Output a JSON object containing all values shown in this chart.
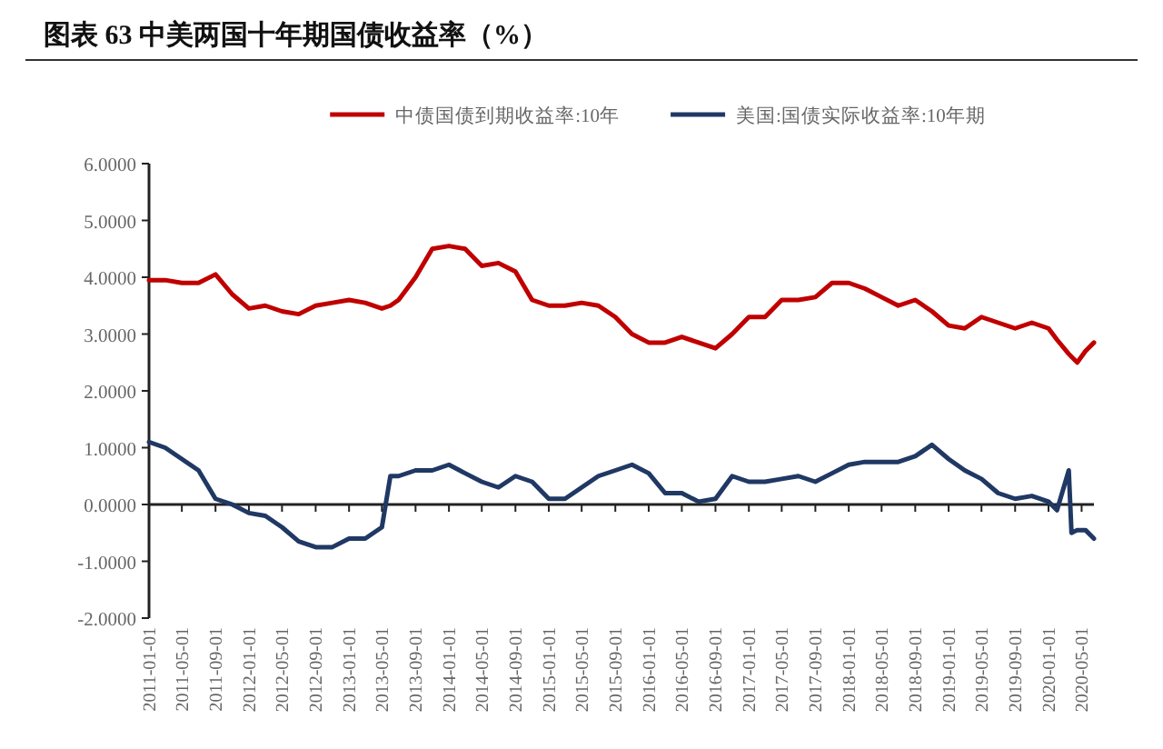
{
  "chart_data": {
    "type": "line",
    "title": "图表 63   中美两国十年期国债收益率（%）",
    "x": [
      "2011-01-01",
      "2011-03-01",
      "2011-05-01",
      "2011-07-01",
      "2011-09-01",
      "2011-11-01",
      "2012-01-01",
      "2012-03-01",
      "2012-05-01",
      "2012-07-01",
      "2012-09-01",
      "2012-11-01",
      "2013-01-01",
      "2013-03-01",
      "2013-05-01",
      "2013-06-01",
      "2013-07-01",
      "2013-09-01",
      "2013-11-01",
      "2014-01-01",
      "2014-03-01",
      "2014-05-01",
      "2014-07-01",
      "2014-09-01",
      "2014-11-01",
      "2015-01-01",
      "2015-03-01",
      "2015-05-01",
      "2015-07-01",
      "2015-09-01",
      "2015-11-01",
      "2016-01-01",
      "2016-03-01",
      "2016-05-01",
      "2016-07-01",
      "2016-09-01",
      "2016-11-01",
      "2017-01-01",
      "2017-03-01",
      "2017-05-01",
      "2017-07-01",
      "2017-09-01",
      "2017-11-01",
      "2018-01-01",
      "2018-03-01",
      "2018-05-01",
      "2018-07-01",
      "2018-09-01",
      "2018-11-01",
      "2019-01-01",
      "2019-03-01",
      "2019-05-01",
      "2019-07-01",
      "2019-09-01",
      "2019-11-01",
      "2020-01-01",
      "2020-02-01",
      "2020-03-15",
      "2020-03-25",
      "2020-04-15",
      "2020-05-15",
      "2020-06-15"
    ],
    "series": [
      {
        "name": "中债国债到期收益率:10年",
        "color": "#c00000",
        "values": [
          3.95,
          3.95,
          3.9,
          3.9,
          4.05,
          3.7,
          3.45,
          3.5,
          3.4,
          3.35,
          3.5,
          3.55,
          3.6,
          3.55,
          3.45,
          3.5,
          3.6,
          4.0,
          4.5,
          4.55,
          4.5,
          4.2,
          4.25,
          4.1,
          3.6,
          3.5,
          3.5,
          3.55,
          3.5,
          3.3,
          3.0,
          2.85,
          2.85,
          2.95,
          2.85,
          2.75,
          3.0,
          3.3,
          3.3,
          3.6,
          3.6,
          3.65,
          3.9,
          3.9,
          3.8,
          3.65,
          3.5,
          3.6,
          3.4,
          3.15,
          3.1,
          3.3,
          3.2,
          3.1,
          3.2,
          3.1,
          2.9,
          2.65,
          2.6,
          2.5,
          2.7,
          2.85
        ]
      },
      {
        "name": "美国:国债实际收益率:10年期",
        "color": "#203864",
        "values": [
          1.1,
          1.0,
          0.8,
          0.6,
          0.1,
          0.0,
          -0.15,
          -0.2,
          -0.4,
          -0.65,
          -0.75,
          -0.75,
          -0.6,
          -0.6,
          -0.4,
          0.5,
          0.5,
          0.6,
          0.6,
          0.7,
          0.55,
          0.4,
          0.3,
          0.5,
          0.4,
          0.1,
          0.1,
          0.3,
          0.5,
          0.6,
          0.7,
          0.55,
          0.2,
          0.2,
          0.05,
          0.1,
          0.5,
          0.4,
          0.4,
          0.45,
          0.5,
          0.4,
          0.55,
          0.7,
          0.75,
          0.75,
          0.75,
          0.85,
          1.05,
          0.8,
          0.6,
          0.45,
          0.2,
          0.1,
          0.15,
          0.05,
          -0.1,
          0.6,
          -0.5,
          -0.45,
          -0.45,
          -0.6
        ]
      }
    ],
    "xlim": [
      "2011-01-01",
      "2020-06-15"
    ],
    "xticks": [
      "2011-01-01",
      "2011-05-01",
      "2011-09-01",
      "2012-01-01",
      "2012-05-01",
      "2012-09-01",
      "2013-01-01",
      "2013-05-01",
      "2013-09-01",
      "2014-01-01",
      "2014-05-01",
      "2014-09-01",
      "2015-01-01",
      "2015-05-01",
      "2015-09-01",
      "2016-01-01",
      "2016-05-01",
      "2016-09-01",
      "2017-01-01",
      "2017-05-01",
      "2017-09-01",
      "2018-01-01",
      "2018-05-01",
      "2018-09-01",
      "2019-01-01",
      "2019-05-01",
      "2019-09-01",
      "2020-01-01",
      "2020-05-01"
    ],
    "ylim": [
      -2,
      6
    ],
    "yticks": [
      {
        "value": -2,
        "label": "-2.0000"
      },
      {
        "value": -1,
        "label": "-1.0000"
      },
      {
        "value": 0,
        "label": "0.0000"
      },
      {
        "value": 1,
        "label": "1.0000"
      },
      {
        "value": 2,
        "label": "2.0000"
      },
      {
        "value": 3,
        "label": "3.0000"
      },
      {
        "value": 4,
        "label": "4.0000"
      },
      {
        "value": 5,
        "label": "5.0000"
      },
      {
        "value": 6,
        "label": "6.0000"
      }
    ],
    "legend": "top"
  }
}
